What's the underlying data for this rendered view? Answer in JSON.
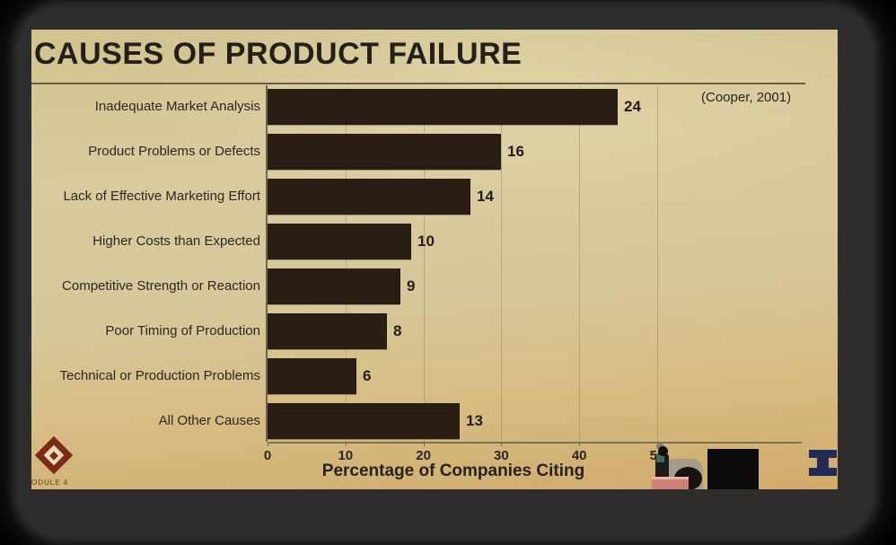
{
  "slide": {
    "title": "CAUSES OF PRODUCT FAILURE",
    "citation": "(Cooper, 2001)"
  },
  "chart_data": {
    "type": "bar",
    "orientation": "horizontal",
    "title": "CAUSES OF PRODUCT FAILURE",
    "source": "(Cooper, 2001)",
    "categories": [
      "Inadequate Market Analysis",
      "Product Problems or Defects",
      "Lack of Effective Marketing Effort",
      "Higher Costs than Expected",
      "Competitive Strength or Reaction",
      "Poor Timing of Production",
      "Technical or Production Problems",
      "All Other Causes"
    ],
    "values": [
      24,
      16,
      14,
      10,
      9,
      8,
      6,
      13
    ],
    "bar_visual_extents_axis_units": [
      44.9,
      30,
      26,
      18.4,
      17.1,
      15.3,
      11.4,
      24.6
    ],
    "xlabel": "Percentage of Companies Citing",
    "x_ticks": [
      0,
      10,
      20,
      30,
      40,
      50
    ],
    "xlim": [
      0,
      50
    ],
    "grid": "faint-vertical-gridlines",
    "legend": "none",
    "bar_color": "#291d14",
    "note": "Bars as drawn on the slide extend ~1.87x beyond their numeric labels on the percentage axis"
  },
  "footer": {
    "module_badge_label": "ODULE 4"
  },
  "colors": {
    "slide_background_top": "#d8cb9e",
    "slide_background_bottom": "#d1aa6b",
    "bar": "#291d14",
    "frame": "#2e2d2c",
    "badge_red": "#7c2c15",
    "block_i_navy": "#222b55"
  }
}
